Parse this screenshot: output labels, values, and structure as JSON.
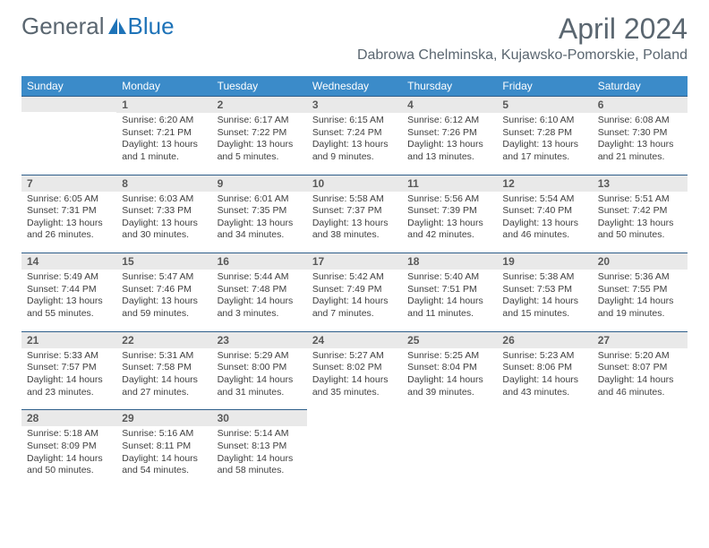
{
  "brand": {
    "name_part1": "General",
    "name_part2": "Blue",
    "logo_color": "#1e73b8"
  },
  "title": "April 2024",
  "location": "Dabrowa Chelminska, Kujawsko-Pomorskie, Poland",
  "colors": {
    "header_bg": "#3b8bc9",
    "header_text": "#ffffff",
    "daynum_bg": "#e9e9e9",
    "daynum_text": "#595959",
    "border": "#2e5e8a",
    "body_text": "#404040",
    "title_text": "#5a6670"
  },
  "dow": [
    "Sunday",
    "Monday",
    "Tuesday",
    "Wednesday",
    "Thursday",
    "Friday",
    "Saturday"
  ],
  "weeks": [
    [
      {
        "n": "",
        "sr": "",
        "ss": "",
        "dl": ""
      },
      {
        "n": "1",
        "sr": "Sunrise: 6:20 AM",
        "ss": "Sunset: 7:21 PM",
        "dl": "Daylight: 13 hours and 1 minute."
      },
      {
        "n": "2",
        "sr": "Sunrise: 6:17 AM",
        "ss": "Sunset: 7:22 PM",
        "dl": "Daylight: 13 hours and 5 minutes."
      },
      {
        "n": "3",
        "sr": "Sunrise: 6:15 AM",
        "ss": "Sunset: 7:24 PM",
        "dl": "Daylight: 13 hours and 9 minutes."
      },
      {
        "n": "4",
        "sr": "Sunrise: 6:12 AM",
        "ss": "Sunset: 7:26 PM",
        "dl": "Daylight: 13 hours and 13 minutes."
      },
      {
        "n": "5",
        "sr": "Sunrise: 6:10 AM",
        "ss": "Sunset: 7:28 PM",
        "dl": "Daylight: 13 hours and 17 minutes."
      },
      {
        "n": "6",
        "sr": "Sunrise: 6:08 AM",
        "ss": "Sunset: 7:30 PM",
        "dl": "Daylight: 13 hours and 21 minutes."
      }
    ],
    [
      {
        "n": "7",
        "sr": "Sunrise: 6:05 AM",
        "ss": "Sunset: 7:31 PM",
        "dl": "Daylight: 13 hours and 26 minutes."
      },
      {
        "n": "8",
        "sr": "Sunrise: 6:03 AM",
        "ss": "Sunset: 7:33 PM",
        "dl": "Daylight: 13 hours and 30 minutes."
      },
      {
        "n": "9",
        "sr": "Sunrise: 6:01 AM",
        "ss": "Sunset: 7:35 PM",
        "dl": "Daylight: 13 hours and 34 minutes."
      },
      {
        "n": "10",
        "sr": "Sunrise: 5:58 AM",
        "ss": "Sunset: 7:37 PM",
        "dl": "Daylight: 13 hours and 38 minutes."
      },
      {
        "n": "11",
        "sr": "Sunrise: 5:56 AM",
        "ss": "Sunset: 7:39 PM",
        "dl": "Daylight: 13 hours and 42 minutes."
      },
      {
        "n": "12",
        "sr": "Sunrise: 5:54 AM",
        "ss": "Sunset: 7:40 PM",
        "dl": "Daylight: 13 hours and 46 minutes."
      },
      {
        "n": "13",
        "sr": "Sunrise: 5:51 AM",
        "ss": "Sunset: 7:42 PM",
        "dl": "Daylight: 13 hours and 50 minutes."
      }
    ],
    [
      {
        "n": "14",
        "sr": "Sunrise: 5:49 AM",
        "ss": "Sunset: 7:44 PM",
        "dl": "Daylight: 13 hours and 55 minutes."
      },
      {
        "n": "15",
        "sr": "Sunrise: 5:47 AM",
        "ss": "Sunset: 7:46 PM",
        "dl": "Daylight: 13 hours and 59 minutes."
      },
      {
        "n": "16",
        "sr": "Sunrise: 5:44 AM",
        "ss": "Sunset: 7:48 PM",
        "dl": "Daylight: 14 hours and 3 minutes."
      },
      {
        "n": "17",
        "sr": "Sunrise: 5:42 AM",
        "ss": "Sunset: 7:49 PM",
        "dl": "Daylight: 14 hours and 7 minutes."
      },
      {
        "n": "18",
        "sr": "Sunrise: 5:40 AM",
        "ss": "Sunset: 7:51 PM",
        "dl": "Daylight: 14 hours and 11 minutes."
      },
      {
        "n": "19",
        "sr": "Sunrise: 5:38 AM",
        "ss": "Sunset: 7:53 PM",
        "dl": "Daylight: 14 hours and 15 minutes."
      },
      {
        "n": "20",
        "sr": "Sunrise: 5:36 AM",
        "ss": "Sunset: 7:55 PM",
        "dl": "Daylight: 14 hours and 19 minutes."
      }
    ],
    [
      {
        "n": "21",
        "sr": "Sunrise: 5:33 AM",
        "ss": "Sunset: 7:57 PM",
        "dl": "Daylight: 14 hours and 23 minutes."
      },
      {
        "n": "22",
        "sr": "Sunrise: 5:31 AM",
        "ss": "Sunset: 7:58 PM",
        "dl": "Daylight: 14 hours and 27 minutes."
      },
      {
        "n": "23",
        "sr": "Sunrise: 5:29 AM",
        "ss": "Sunset: 8:00 PM",
        "dl": "Daylight: 14 hours and 31 minutes."
      },
      {
        "n": "24",
        "sr": "Sunrise: 5:27 AM",
        "ss": "Sunset: 8:02 PM",
        "dl": "Daylight: 14 hours and 35 minutes."
      },
      {
        "n": "25",
        "sr": "Sunrise: 5:25 AM",
        "ss": "Sunset: 8:04 PM",
        "dl": "Daylight: 14 hours and 39 minutes."
      },
      {
        "n": "26",
        "sr": "Sunrise: 5:23 AM",
        "ss": "Sunset: 8:06 PM",
        "dl": "Daylight: 14 hours and 43 minutes."
      },
      {
        "n": "27",
        "sr": "Sunrise: 5:20 AM",
        "ss": "Sunset: 8:07 PM",
        "dl": "Daylight: 14 hours and 46 minutes."
      }
    ],
    [
      {
        "n": "28",
        "sr": "Sunrise: 5:18 AM",
        "ss": "Sunset: 8:09 PM",
        "dl": "Daylight: 14 hours and 50 minutes."
      },
      {
        "n": "29",
        "sr": "Sunrise: 5:16 AM",
        "ss": "Sunset: 8:11 PM",
        "dl": "Daylight: 14 hours and 54 minutes."
      },
      {
        "n": "30",
        "sr": "Sunrise: 5:14 AM",
        "ss": "Sunset: 8:13 PM",
        "dl": "Daylight: 14 hours and 58 minutes."
      },
      {
        "n": "",
        "sr": "",
        "ss": "",
        "dl": ""
      },
      {
        "n": "",
        "sr": "",
        "ss": "",
        "dl": ""
      },
      {
        "n": "",
        "sr": "",
        "ss": "",
        "dl": ""
      },
      {
        "n": "",
        "sr": "",
        "ss": "",
        "dl": ""
      }
    ]
  ]
}
